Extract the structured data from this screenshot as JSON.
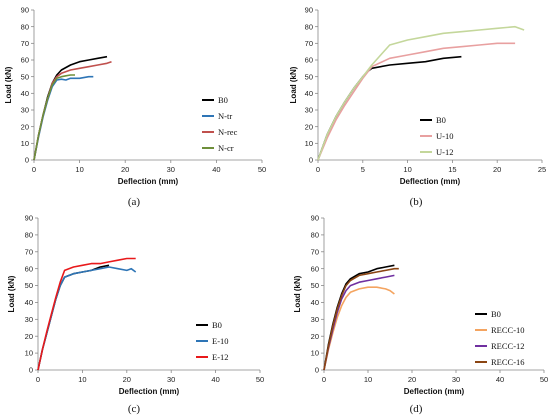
{
  "chart_data": [
    {
      "type": "line",
      "caption": "(a)",
      "xlabel": "Deflection (mm)",
      "ylabel": "Load (kN)",
      "xlim": [
        0,
        50
      ],
      "ylim": [
        0,
        90
      ],
      "xticks": [
        0,
        10,
        20,
        30,
        40,
        50
      ],
      "yticks": [
        0,
        10,
        20,
        30,
        40,
        50,
        60,
        70,
        80,
        90
      ],
      "grid": false,
      "legend": "right",
      "series": [
        {
          "name": "B0",
          "color": "#000000",
          "x": [
            0,
            1,
            2,
            3,
            4,
            5,
            6,
            8,
            10,
            12,
            14,
            16
          ],
          "y": [
            0,
            15,
            27,
            38,
            46,
            51,
            54,
            57,
            59,
            60,
            61,
            62
          ]
        },
        {
          "name": "N-tr",
          "color": "#2e75b6",
          "x": [
            0,
            1,
            2,
            3,
            4,
            5,
            6,
            7,
            8,
            10,
            12,
            13
          ],
          "y": [
            0,
            14,
            26,
            36,
            44,
            48,
            48.5,
            48,
            49,
            49,
            50,
            50
          ]
        },
        {
          "name": "N-rec",
          "color": "#c0504d",
          "x": [
            0,
            1,
            2,
            3,
            4,
            5,
            6,
            8,
            10,
            12,
            14,
            16,
            17
          ],
          "y": [
            0,
            15,
            27,
            37,
            46,
            50,
            52,
            54,
            55,
            56,
            57,
            58,
            59
          ]
        },
        {
          "name": "N-cr",
          "color": "#6e8f3a",
          "x": [
            0,
            1,
            2,
            3,
            4,
            5,
            6,
            7,
            8,
            9
          ],
          "y": [
            0,
            15,
            27,
            37,
            45,
            49,
            50,
            50.5,
            51,
            51
          ]
        }
      ]
    },
    {
      "type": "line",
      "caption": "(b)",
      "xlabel": "Deflection (mm)",
      "ylabel": "Load (kN)",
      "xlim": [
        0,
        25
      ],
      "ylim": [
        0,
        90
      ],
      "xticks": [
        0,
        5,
        10,
        15,
        20,
        25
      ],
      "yticks": [
        0,
        10,
        20,
        30,
        40,
        50,
        60,
        70,
        80,
        90
      ],
      "grid": false,
      "legend": "lower-right",
      "series": [
        {
          "name": "B0",
          "color": "#000000",
          "x": [
            0,
            1,
            2,
            3,
            4,
            5,
            5.5,
            6,
            8,
            10,
            12,
            14,
            16
          ],
          "y": [
            0,
            15,
            26,
            35,
            43,
            50,
            53,
            55,
            57,
            58,
            59,
            61,
            62
          ]
        },
        {
          "name": "U-10",
          "color": "#e8a0a0",
          "x": [
            0,
            1,
            2,
            3,
            4,
            5,
            6,
            8,
            10,
            12,
            14,
            16,
            18,
            20,
            22
          ],
          "y": [
            0,
            13,
            24,
            33,
            41,
            49,
            56,
            61,
            63,
            65,
            67,
            68,
            69,
            70,
            70
          ]
        },
        {
          "name": "U-12",
          "color": "#c4d79b",
          "x": [
            0,
            1,
            2,
            3,
            4,
            5,
            6,
            7,
            8,
            10,
            12,
            14,
            16,
            18,
            20,
            22,
            23
          ],
          "y": [
            0,
            15,
            26,
            35,
            43,
            50,
            57,
            63,
            69,
            72,
            74,
            76,
            77,
            78,
            79,
            80,
            78
          ]
        }
      ]
    },
    {
      "type": "line",
      "caption": "(c)",
      "xlabel": "Deflection (mm)",
      "ylabel": "Load (kN)",
      "xlim": [
        0,
        50
      ],
      "ylim": [
        0,
        90
      ],
      "xticks": [
        0,
        10,
        20,
        30,
        40,
        50
      ],
      "yticks": [
        0,
        10,
        20,
        30,
        40,
        50,
        60,
        70,
        80,
        90
      ],
      "grid": false,
      "legend": "right",
      "series": [
        {
          "name": "B0",
          "color": "#000000",
          "x": [
            0,
            1,
            2,
            3,
            4,
            5,
            6,
            8,
            10,
            12,
            14,
            16
          ],
          "y": [
            0,
            12,
            22,
            32,
            42,
            50,
            55,
            57,
            58,
            59,
            61,
            62
          ]
        },
        {
          "name": "E-10",
          "color": "#2e75b6",
          "x": [
            0,
            1,
            2,
            3,
            4,
            5,
            6,
            8,
            10,
            12,
            14,
            16,
            18,
            20,
            21,
            22
          ],
          "y": [
            0,
            12,
            22,
            32,
            42,
            50,
            55,
            57,
            58,
            59,
            60,
            61,
            60,
            59,
            60,
            58
          ]
        },
        {
          "name": "E-12",
          "color": "#e8191b",
          "x": [
            0,
            1,
            2,
            3,
            4,
            5,
            6,
            8,
            10,
            12,
            14,
            16,
            18,
            20,
            22
          ],
          "y": [
            0,
            12,
            23,
            33,
            43,
            52,
            59,
            61,
            62,
            63,
            63,
            64,
            65,
            66,
            66
          ]
        }
      ]
    },
    {
      "type": "line",
      "caption": "(d)",
      "xlabel": "Deflection (mm)",
      "ylabel": "Load (kN)",
      "xlim": [
        0,
        50
      ],
      "ylim": [
        0,
        90
      ],
      "xticks": [
        0,
        10,
        20,
        30,
        40,
        50
      ],
      "yticks": [
        0,
        10,
        20,
        30,
        40,
        50,
        60,
        70,
        80,
        90
      ],
      "grid": false,
      "legend": "lower-right",
      "series": [
        {
          "name": "B0",
          "color": "#000000",
          "x": [
            0,
            1,
            2,
            3,
            4,
            5,
            6,
            8,
            10,
            12,
            14,
            16
          ],
          "y": [
            0,
            15,
            27,
            37,
            45,
            51,
            54,
            57,
            58,
            60,
            61,
            62
          ]
        },
        {
          "name": "RECC-10",
          "color": "#f4a460",
          "x": [
            0,
            1,
            2,
            3,
            4,
            5,
            6,
            8,
            10,
            12,
            14,
            15,
            16
          ],
          "y": [
            0,
            12,
            22,
            31,
            38,
            43,
            46,
            48,
            49,
            49,
            48,
            47,
            45
          ]
        },
        {
          "name": "RECC-12",
          "color": "#7030a0",
          "x": [
            0,
            1,
            2,
            3,
            4,
            5,
            6,
            8,
            10,
            12,
            14,
            16
          ],
          "y": [
            0,
            13,
            24,
            34,
            42,
            47,
            50,
            52,
            53,
            54,
            55,
            56
          ]
        },
        {
          "name": "RECC-16",
          "color": "#8b4513",
          "x": [
            0,
            1,
            2,
            3,
            4,
            5,
            6,
            8,
            10,
            12,
            14,
            16,
            17
          ],
          "y": [
            0,
            14,
            26,
            36,
            44,
            50,
            53,
            56,
            57,
            58,
            59,
            60,
            60
          ]
        }
      ]
    }
  ]
}
